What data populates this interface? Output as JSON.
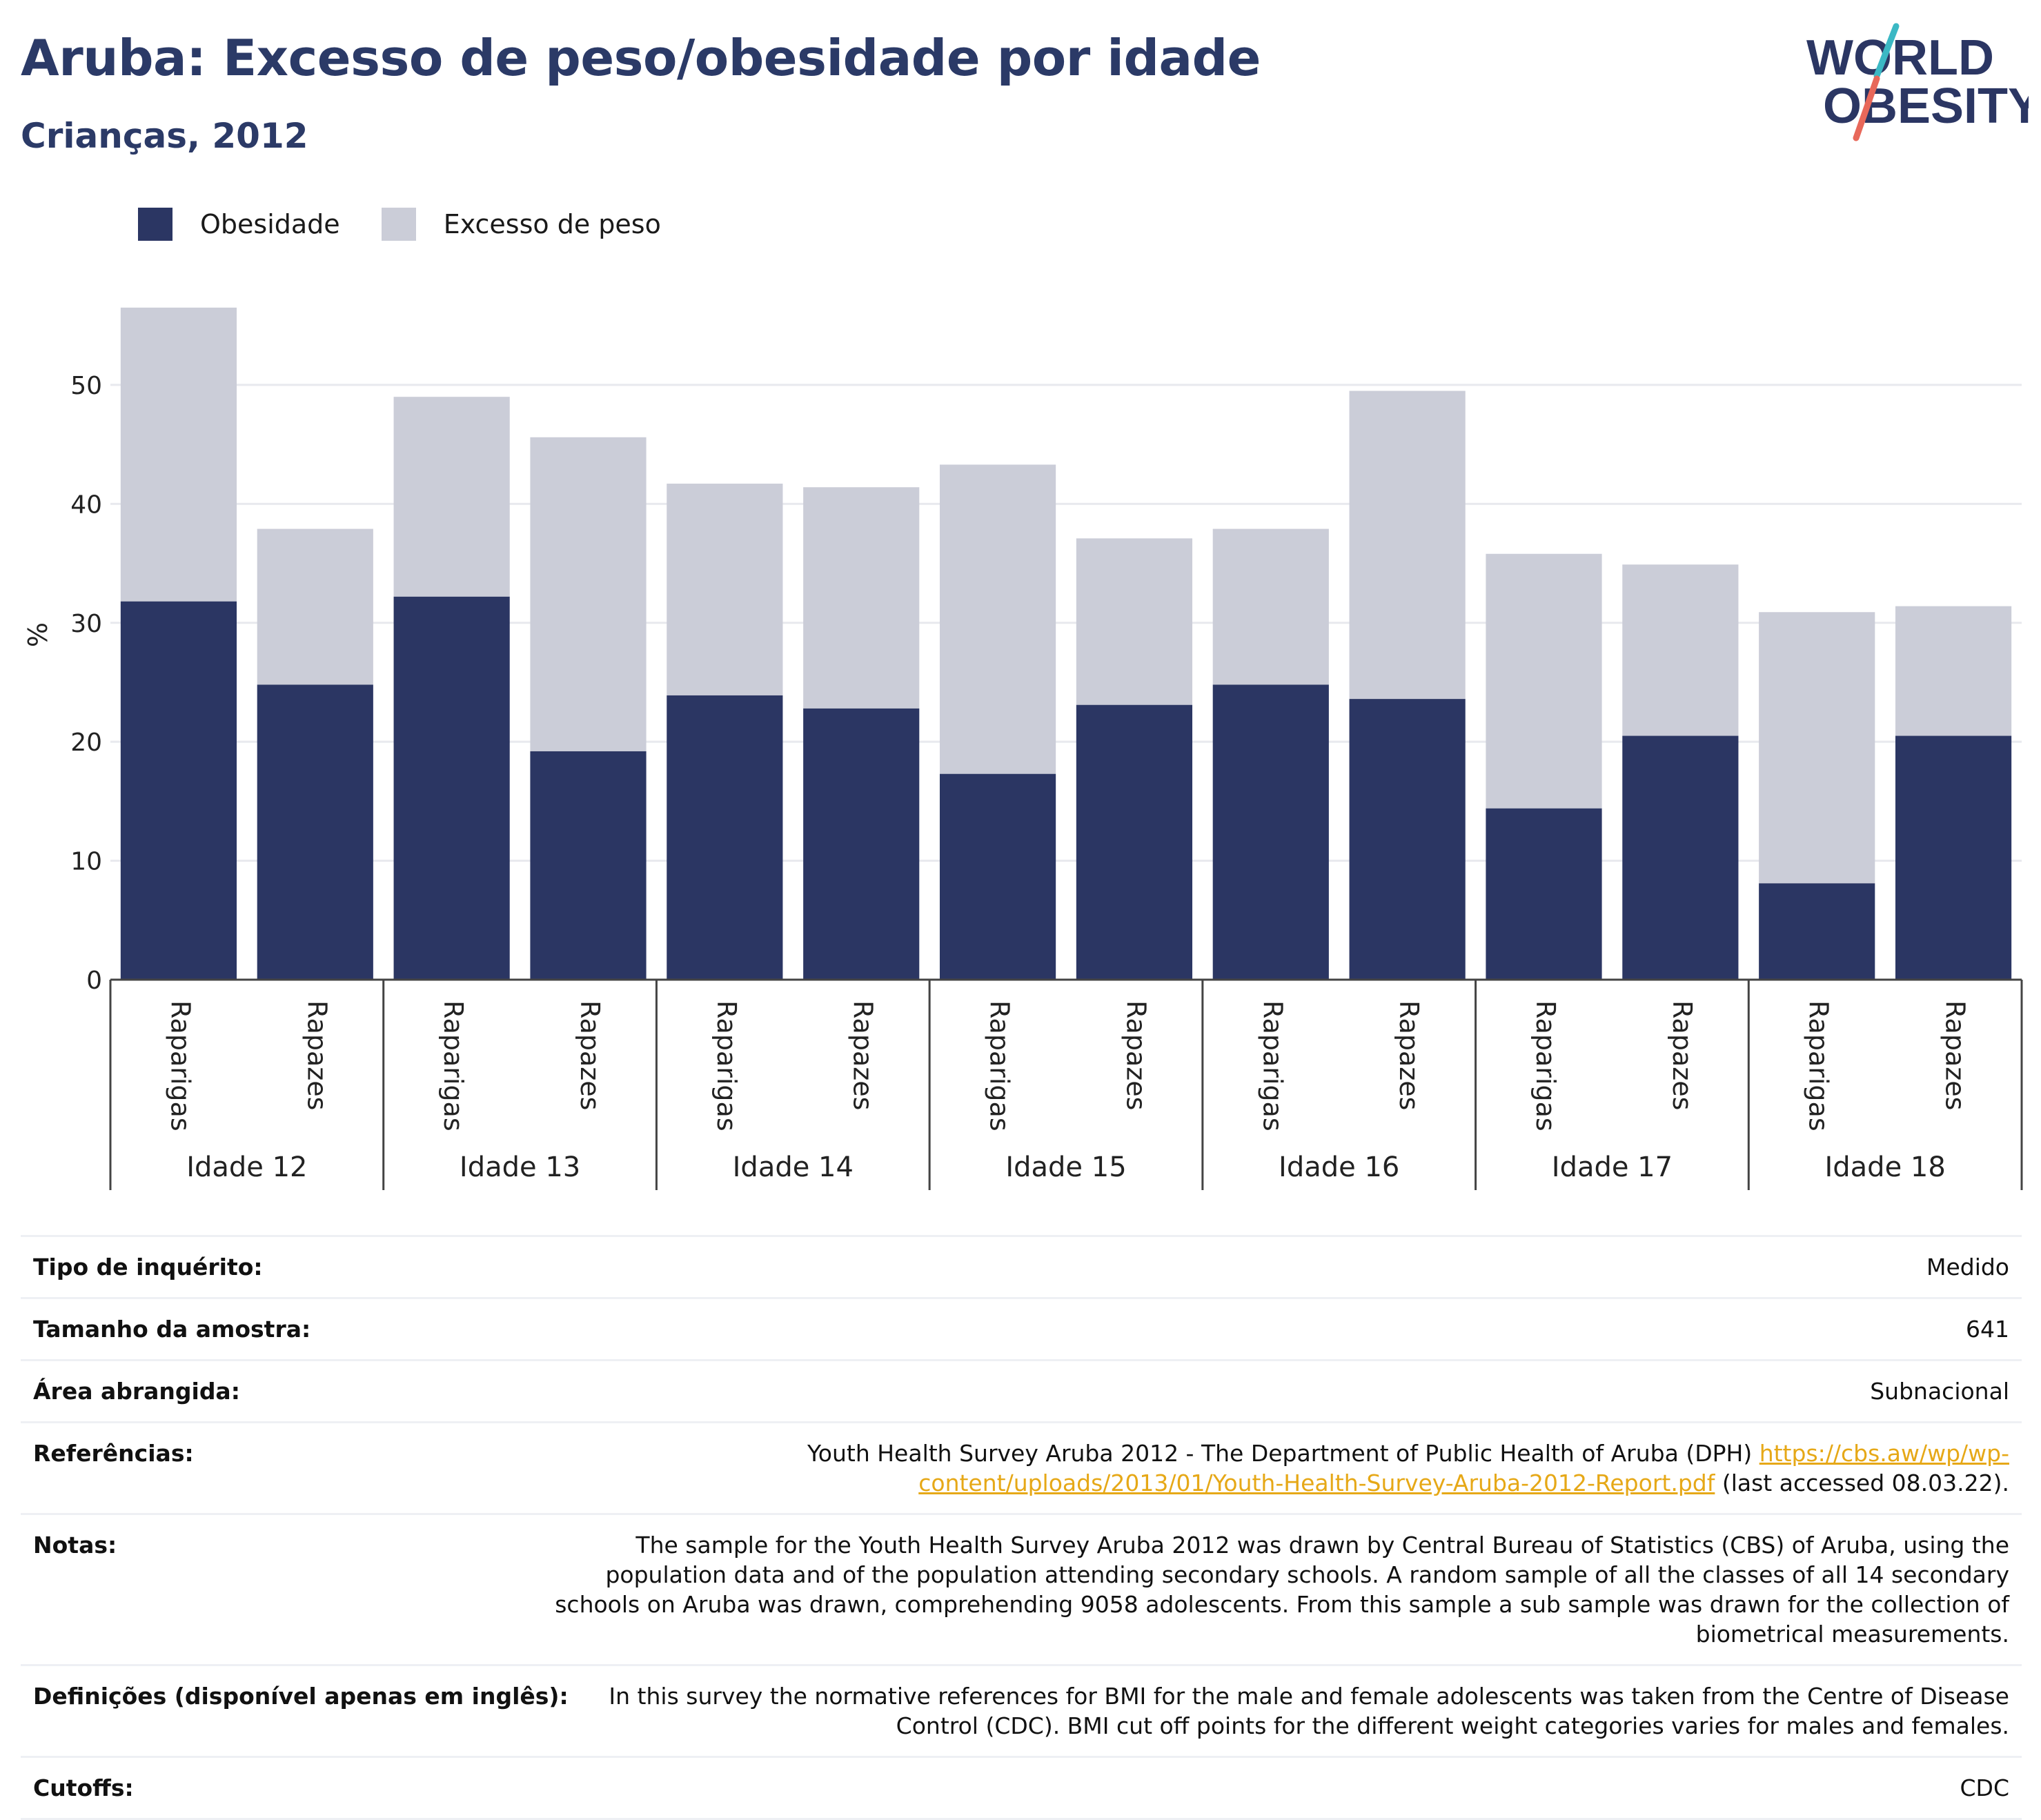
{
  "header": {
    "title": "Aruba: Excesso de peso/obesidade por idade",
    "subtitle": "Crianças, 2012"
  },
  "logo": {
    "line1": "WORLD",
    "line2": "OBESITY"
  },
  "legend": {
    "items": [
      {
        "label": "Obesidade",
        "color": "#2b3663"
      },
      {
        "label": "Excesso de peso",
        "color": "#cbcdd8"
      }
    ]
  },
  "chart_data": {
    "type": "bar",
    "stacked": true,
    "ylabel": "%",
    "ylim": [
      0,
      58
    ],
    "yticks": [
      0,
      10,
      20,
      30,
      40,
      50
    ],
    "grid": true,
    "legend_position": "top-left",
    "groups": [
      "Idade 12",
      "Idade 13",
      "Idade 14",
      "Idade 15",
      "Idade 16",
      "Idade 17",
      "Idade 18"
    ],
    "subcategories": [
      "Raparigas",
      "Rapazes"
    ],
    "series": [
      {
        "name": "Obesidade",
        "color": "#2b3663",
        "values": [
          31.8,
          24.8,
          32.2,
          19.2,
          23.9,
          22.8,
          17.3,
          23.1,
          24.8,
          23.6,
          14.4,
          20.5,
          8.1,
          20.5
        ]
      },
      {
        "name": "Excesso de peso",
        "color": "#cbcdd8",
        "values": [
          24.7,
          13.1,
          16.8,
          26.4,
          17.8,
          18.6,
          26.0,
          14.0,
          13.1,
          25.9,
          21.4,
          14.4,
          22.8,
          10.9
        ]
      }
    ]
  },
  "info": {
    "rows": [
      {
        "label": "Tipo de inquérito:",
        "value": "Medido"
      },
      {
        "label": "Tamanho da amostra:",
        "value": "641"
      },
      {
        "label": "Área abrangida:",
        "value": "Subnacional"
      },
      {
        "label": "Referências:",
        "value": "Youth Health Survey Aruba 2012 - The Department of Public Health of Aruba (DPH)",
        "link": "https://cbs.aw/wp/wp-content/uploads/2013/01/Youth-Health-Survey-Aruba-2012-Report.pdf",
        "suffix": "(last accessed 08.03.22)."
      },
      {
        "label": "Notas:",
        "value": "The sample for the Youth Health Survey Aruba 2012 was drawn by Central Bureau of Statistics (CBS) of Aruba, using the population data and of the population attending secondary schools. A random sample of all the classes of all 14 secondary schools on Aruba was drawn, comprehending 9058 adolescents. From this sample a sub sample was drawn for the collection of biometrical measurements."
      },
      {
        "label": "Definições (disponível apenas em inglês):",
        "value": "In this survey the normative references for BMI for the male and female adolescents was taken from the Centre of Disease Control (CDC). BMI cut off points for the different weight categories varies for males and females."
      },
      {
        "label": "Cutoffs:",
        "value": "CDC"
      }
    ]
  }
}
